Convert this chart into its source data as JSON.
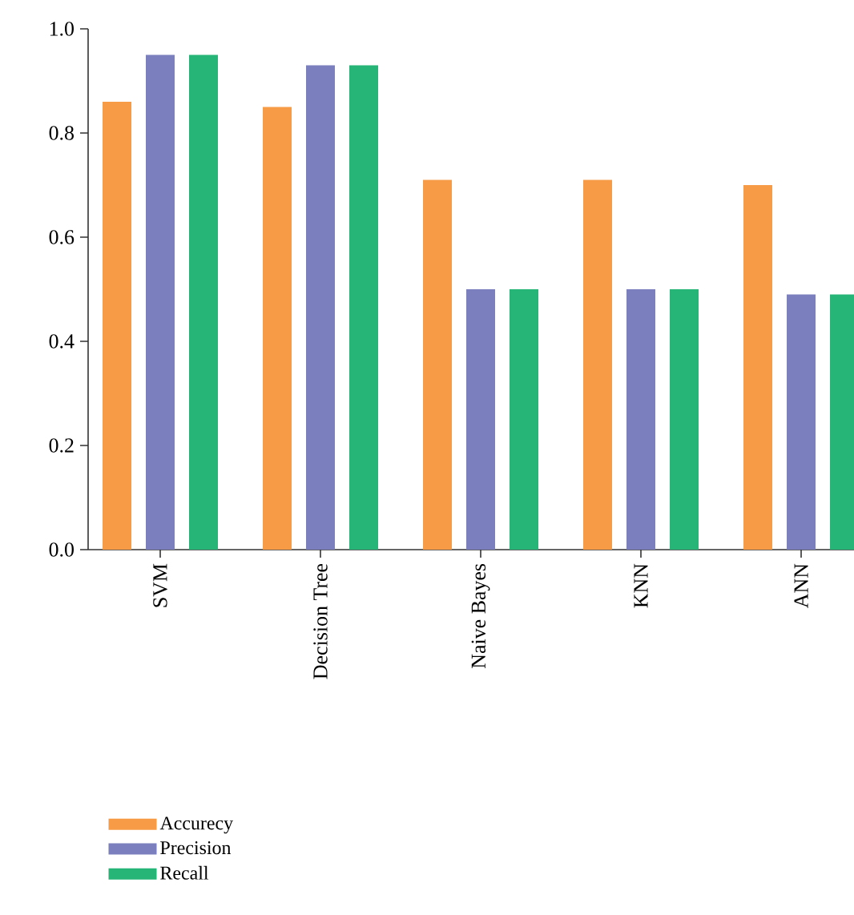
{
  "chart_data": {
    "type": "bar",
    "categories": [
      "SVM",
      "Decision Tree",
      "Naive Bayes",
      "KNN",
      "ANN"
    ],
    "series": [
      {
        "name": "Accurecy",
        "color": "#f79b46",
        "values": [
          0.86,
          0.85,
          0.71,
          0.71,
          0.7
        ]
      },
      {
        "name": "Precision",
        "color": "#7b7fbd",
        "values": [
          0.95,
          0.93,
          0.5,
          0.5,
          0.49
        ]
      },
      {
        "name": "Recall",
        "color": "#27b577",
        "values": [
          0.95,
          0.93,
          0.5,
          0.5,
          0.49
        ]
      }
    ],
    "ylim": [
      0,
      1.0
    ],
    "yticks": [
      {
        "value": 0,
        "label": "0.0"
      },
      {
        "value": 0.2,
        "label": "0.2"
      },
      {
        "value": 0.4,
        "label": "0.4"
      },
      {
        "value": 0.6,
        "label": "0.6"
      },
      {
        "value": 0.8,
        "label": "0.8"
      },
      {
        "value": 1.0,
        "label": "1.0"
      }
    ],
    "grid": false,
    "legend": "bottom left"
  }
}
